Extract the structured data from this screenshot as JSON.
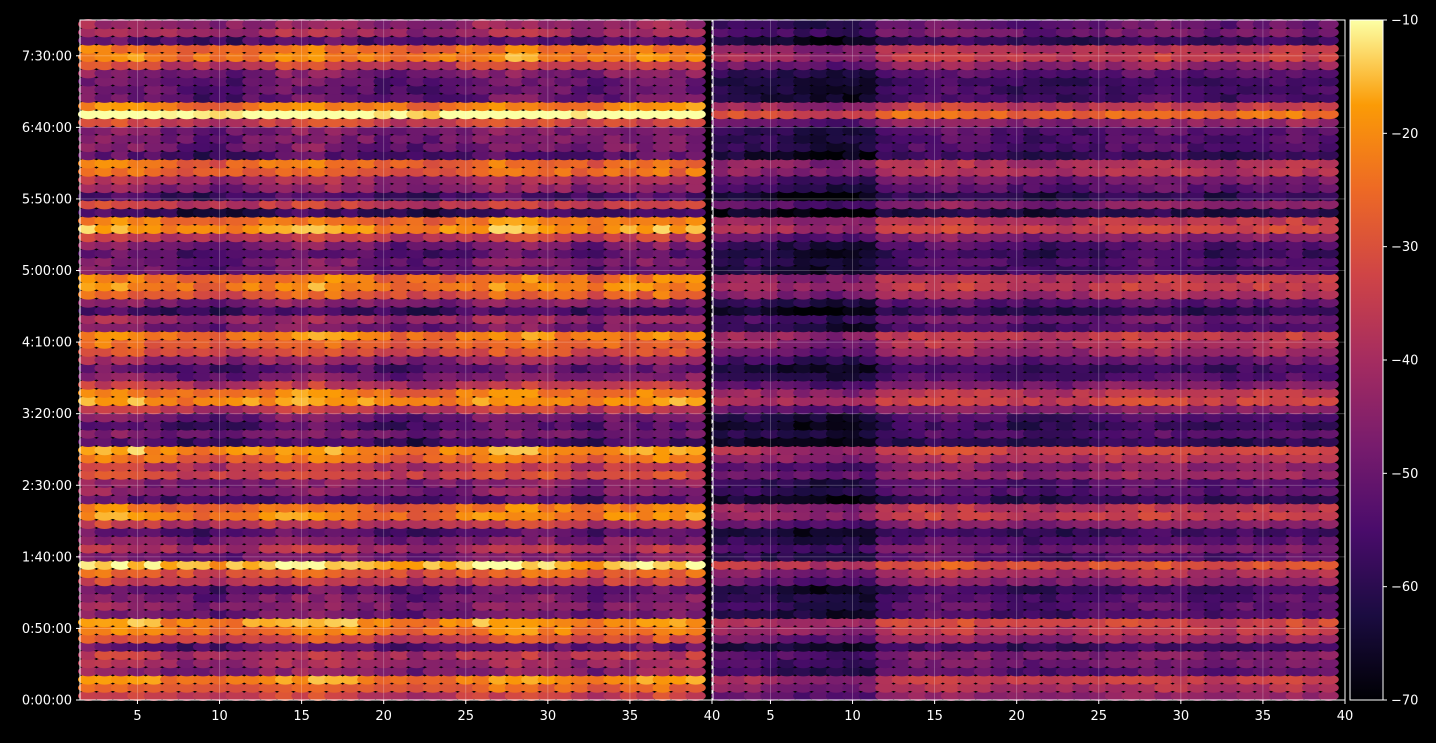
{
  "chart_data": {
    "type": "heatmap",
    "title": "",
    "colormap": "inferno",
    "background": "#000000",
    "panels": [
      {
        "name": "left",
        "xlim": [
          1.5,
          40
        ],
        "xticks": [
          5,
          10,
          15,
          20,
          25,
          30,
          35,
          40
        ],
        "ylim_seconds": [
          0,
          28500
        ],
        "level": 1.0
      },
      {
        "name": "right",
        "xlim": [
          1.5,
          40
        ],
        "xticks": [
          5,
          10,
          15,
          20,
          25,
          30,
          35,
          40
        ],
        "ylim_seconds": [
          0,
          28500
        ],
        "level": 0.72
      }
    ],
    "yticks": [
      {
        "label": "0:00:00",
        "seconds": 0
      },
      {
        "label": "0:50:00",
        "seconds": 3000
      },
      {
        "label": "1:40:00",
        "seconds": 6000
      },
      {
        "label": "2:30:00",
        "seconds": 9000
      },
      {
        "label": "3:20:00",
        "seconds": 12000
      },
      {
        "label": "4:10:00",
        "seconds": 15000
      },
      {
        "label": "5:00:00",
        "seconds": 18000
      },
      {
        "label": "5:50:00",
        "seconds": 21000
      },
      {
        "label": "6:40:00",
        "seconds": 24000
      },
      {
        "label": "7:30:00",
        "seconds": 27000
      }
    ],
    "colorbar": {
      "vmin": -70,
      "vmax": -10,
      "ticks": [
        "−10",
        "−20",
        "−30",
        "−40",
        "−50",
        "−60",
        "−70"
      ],
      "tick_values": [
        -10,
        -20,
        -30,
        -40,
        -50,
        -60,
        -70
      ]
    },
    "grid": true
  }
}
